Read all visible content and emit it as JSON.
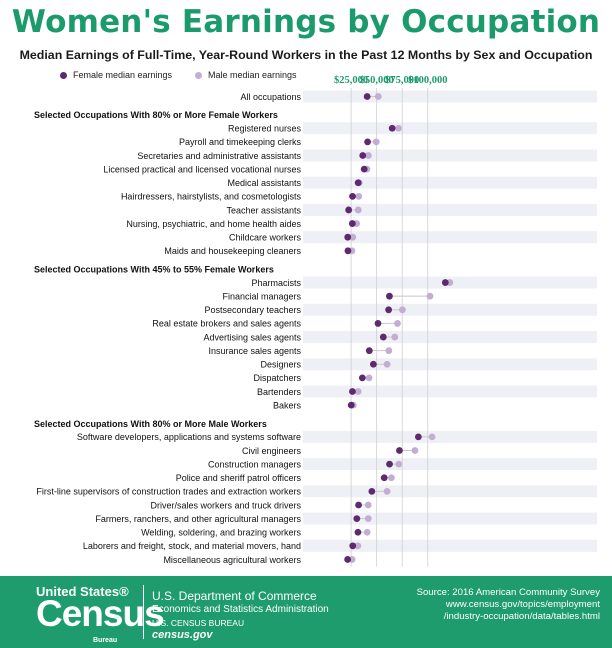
{
  "title": "Women's Earnings by Occupation",
  "subtitle": "Median Earnings of Full-Time, Year-Round Workers in the Past 12 Months by Sex and Occupation",
  "legend": {
    "female": "Female median earnings",
    "male": "Male median earnings"
  },
  "colors": {
    "female": "#5e2a6e",
    "male": "#c3aed3",
    "accent": "#1e9c6d",
    "stripe": "#eef0f5",
    "connector": "#c8c8c8"
  },
  "chart_data": {
    "type": "scatter",
    "xlim": [
      10000,
      125000
    ],
    "xticks": [
      25000,
      50000,
      75000,
      100000
    ],
    "xtick_labels": [
      "$25,000",
      "$50,000",
      "$75,000",
      "$100,000"
    ],
    "series_names": [
      "Female median earnings",
      "Male median earnings"
    ],
    "rows": [
      {
        "label": "All occupations",
        "female": 40700,
        "male": 51600
      },
      {
        "header": "Selected Occupations With 80% or More Female Workers"
      },
      {
        "label": "Registered nurses",
        "female": 65200,
        "male": 71400
      },
      {
        "label": "Payroll and timekeeping clerks",
        "female": 41100,
        "male": 49600
      },
      {
        "label": "Secretaries and administrative assistants",
        "female": 36400,
        "male": 41900
      },
      {
        "label": "Licensed practical and licensed vocational nurses",
        "female": 37800,
        "male": 40500
      },
      {
        "label": "Medical assistants",
        "female": 31900,
        "male": 33000
      },
      {
        "label": "Hairdressers, hairstylists, and cosmetologists",
        "female": 26400,
        "male": 32500
      },
      {
        "label": "Teacher assistants",
        "female": 22600,
        "male": 32000
      },
      {
        "label": "Nursing, psychiatric, and home health aides",
        "female": 26200,
        "male": 30400
      },
      {
        "label": "Childcare workers",
        "female": 21700,
        "male": 26600
      },
      {
        "label": "Maids and housekeeping cleaners",
        "female": 21900,
        "male": 25800
      },
      {
        "header": "Selected Occupations With 45% to 55% Female Workers"
      },
      {
        "label": "Pharmacists",
        "female": 117200,
        "male": 121600
      },
      {
        "label": "Financial managers",
        "female": 62500,
        "male": 102200
      },
      {
        "label": "Postsecondary teachers",
        "female": 61700,
        "male": 75200
      },
      {
        "label": "Real estate brokers and sales agents",
        "female": 51300,
        "male": 70400
      },
      {
        "label": "Advertising sales agents",
        "female": 56500,
        "male": 67700
      },
      {
        "label": "Insurance sales agents",
        "female": 42800,
        "male": 61900
      },
      {
        "label": "Designers",
        "female": 46800,
        "male": 60200
      },
      {
        "label": "Dispatchers",
        "female": 36000,
        "male": 42600
      },
      {
        "label": "Bartenders",
        "female": 26300,
        "male": 31900
      },
      {
        "label": "Bakers",
        "female": 25100,
        "male": 27100
      },
      {
        "header": "Selected Occupations With 80% or More Male Workers"
      },
      {
        "label": "Software developers, applications and systems software",
        "female": 90800,
        "male": 104200
      },
      {
        "label": "Civil engineers",
        "female": 72300,
        "male": 87500
      },
      {
        "label": "Construction managers",
        "female": 62600,
        "male": 71700
      },
      {
        "label": "Police and sheriff patrol officers",
        "female": 57400,
        "male": 64400
      },
      {
        "label": "First-line supervisors of construction trades and extraction workers",
        "female": 45300,
        "male": 60200
      },
      {
        "label": "Driver/sales workers and truck drivers",
        "female": 32300,
        "male": 41700
      },
      {
        "label": "Farmers, ranchers, and other agricultural managers",
        "female": 30600,
        "male": 41800
      },
      {
        "label": "Welding, soldering, and brazing workers",
        "female": 31700,
        "male": 40700
      },
      {
        "label": "Laborers and freight, stock, and material movers, hand",
        "female": 26600,
        "male": 31600
      },
      {
        "label": "Miscellaneous agricultural workers",
        "female": 21600,
        "male": 26000
      }
    ]
  },
  "footer": {
    "logo_line1": "United States®",
    "logo_line2": "Census",
    "logo_line3": "Bureau",
    "dept": "U.S. Department of Commerce",
    "admin": "Economics and Statistics Administration",
    "bureau": "U.S. CENSUS BUREAU",
    "site": "census.gov",
    "source_line1": "Source: 2016 American Community Survey",
    "source_line2": "www.census.gov/topics/employment",
    "source_line3": "/industry-occupation/data/tables.html"
  }
}
